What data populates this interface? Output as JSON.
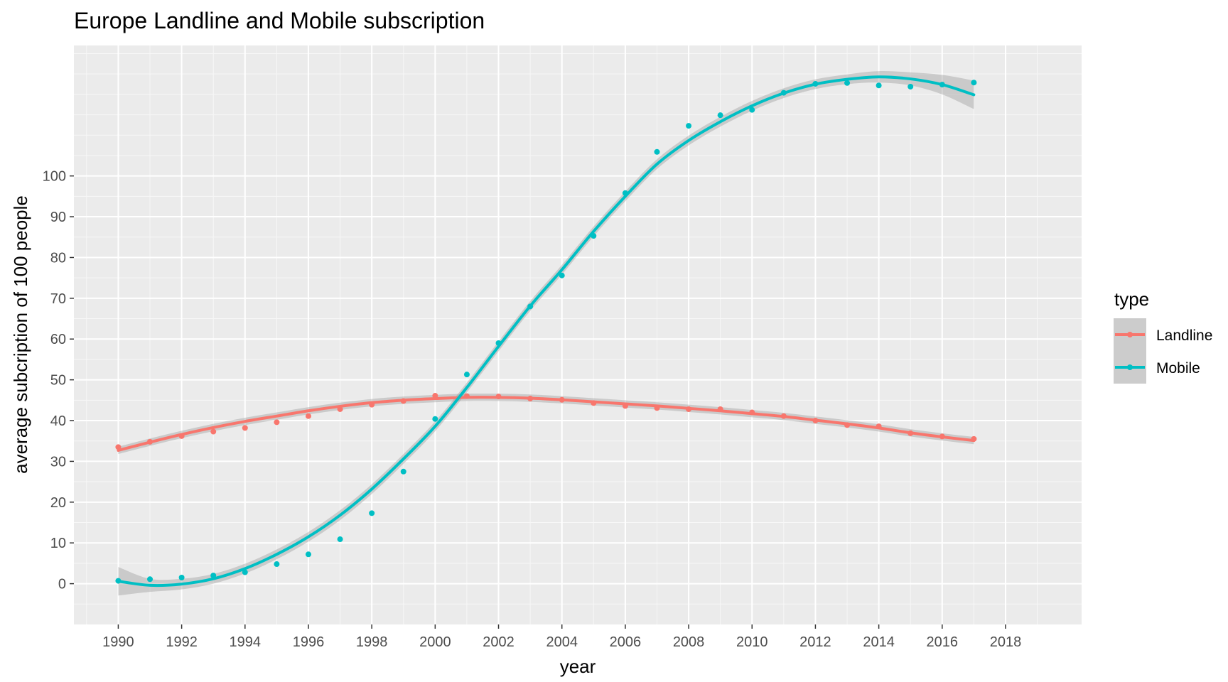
{
  "chart_data": {
    "type": "scatter",
    "title": "Europe Landline and Mobile subscription",
    "xlabel": "year",
    "ylabel": "average subcription of 100 people",
    "xlim": [
      1988.6,
      2020.4
    ],
    "ylim": [
      -10,
      132
    ],
    "xticks": [
      1990,
      1992,
      1994,
      1996,
      1998,
      2000,
      2002,
      2004,
      2006,
      2008,
      2010,
      2012,
      2014,
      2016,
      2018
    ],
    "xtick_labels": [
      "1990",
      "1992",
      "1994",
      "1996",
      "1998",
      "2000",
      "2002",
      "2004",
      "2006",
      "2008",
      "2010",
      "2012",
      "2014",
      "2016",
      "2018"
    ],
    "yticks": [
      0,
      10,
      20,
      30,
      40,
      50,
      60,
      70,
      80,
      90,
      100
    ],
    "ytick_labels": [
      "0",
      "10",
      "20",
      "30",
      "40",
      "50",
      "60",
      "70",
      "80",
      "90",
      "100"
    ],
    "grid": true,
    "background": "#ebebeb",
    "legend": {
      "title": "type",
      "position": "right",
      "entries": [
        "Landline",
        "Mobile"
      ]
    },
    "x": [
      1990,
      1991,
      1992,
      1993,
      1994,
      1995,
      1996,
      1997,
      1998,
      1999,
      2000,
      2001,
      2002,
      2003,
      2004,
      2005,
      2006,
      2007,
      2008,
      2009,
      2010,
      2011,
      2012,
      2013,
      2014,
      2015,
      2016,
      2017
    ],
    "series": [
      {
        "name": "Landline",
        "color": "#f8766d",
        "points": [
          33.5,
          34.8,
          36.2,
          37.3,
          38.2,
          39.6,
          41.1,
          42.8,
          43.9,
          44.8,
          46.1,
          46.0,
          45.9,
          45.4,
          45.1,
          44.3,
          43.6,
          43.1,
          42.8,
          42.8,
          42.0,
          41.1,
          40.0,
          38.9,
          38.6,
          36.9,
          36.1,
          35.5
        ],
        "smooth": [
          32.7,
          34.7,
          36.6,
          38.3,
          39.8,
          41.1,
          42.4,
          43.5,
          44.4,
          45.0,
          45.4,
          45.7,
          45.7,
          45.5,
          45.1,
          44.6,
          44.1,
          43.6,
          43.0,
          42.4,
          41.7,
          41.0,
          40.1,
          39.2,
          38.2,
          37.0,
          36.0,
          35.1
        ],
        "band": 0.9
      },
      {
        "name": "Mobile",
        "color": "#00bfc4",
        "points": [
          0.7,
          1.1,
          1.5,
          2.0,
          2.8,
          4.8,
          7.2,
          10.9,
          17.3,
          27.5,
          40.4,
          51.3,
          59.0,
          68.0,
          75.6,
          85.3,
          95.8,
          105.9,
          112.3,
          114.9,
          116.2,
          120.4,
          122.6,
          122.8,
          122.2,
          121.9,
          122.4,
          122.9
        ],
        "smooth": [
          0.6,
          -0.4,
          -0.1,
          1.2,
          3.7,
          7.2,
          11.5,
          16.8,
          23.2,
          30.6,
          38.6,
          48.1,
          58.2,
          68.1,
          77.0,
          86.4,
          95.0,
          102.9,
          108.7,
          113.3,
          117.2,
          120.3,
          122.5,
          123.7,
          124.3,
          123.8,
          122.4,
          119.9
        ],
        "band_edges": [
          3.5,
          1.6,
          1.3,
          1.2,
          1.2,
          1.2,
          1.2,
          1.2,
          1.2,
          1.2,
          1.2,
          1.2,
          1.2,
          1.2,
          1.2,
          1.2,
          1.2,
          1.2,
          1.2,
          1.2,
          1.2,
          1.2,
          1.2,
          1.2,
          1.4,
          1.6,
          2.4,
          3.5
        ]
      }
    ]
  }
}
